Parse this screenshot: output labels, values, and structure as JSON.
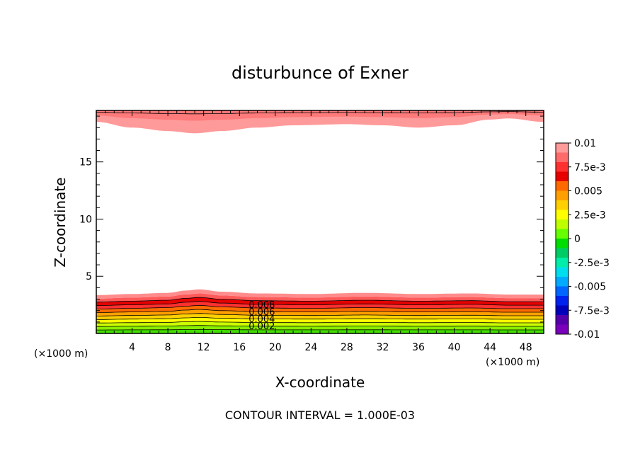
{
  "chart_data": {
    "type": "contour",
    "title": "disturbunce of Exner",
    "xlabel": "X-coordinate",
    "ylabel": "Z-coordinate",
    "x_unit_label": "(×1000 m)",
    "z_unit_label": "(×1000 m)",
    "footer": "CONTOUR INTERVAL = 1.000E-03",
    "xlim": [
      0,
      50
    ],
    "ylim": [
      0,
      19.5
    ],
    "x_ticks": [
      4,
      8,
      12,
      16,
      20,
      24,
      28,
      32,
      36,
      40,
      44,
      48
    ],
    "y_ticks": [
      5,
      10,
      15
    ],
    "contour_interval": 0.001,
    "contour_labels": [
      "0.008",
      "0.006",
      "0.004",
      "0.002"
    ],
    "contour_label_x": 18.5,
    "colorbar": {
      "labels": [
        "0.01",
        "7.5e-3",
        "0.005",
        "2.5e-3",
        "0",
        "-2.5e-3",
        "-0.005",
        "-7.5e-3",
        "-0.01"
      ],
      "colors": [
        "#ff9a9a",
        "#ff6a6a",
        "#ff3030",
        "#e60000",
        "#ff6a00",
        "#ffa000",
        "#ffd000",
        "#ffff00",
        "#c0ff00",
        "#66ff00",
        "#00dd00",
        "#00cc66",
        "#00eeaa",
        "#00ddee",
        "#00aaff",
        "#0066ff",
        "#0022ee",
        "#0000bb",
        "#5500aa",
        "#7a00bb"
      ]
    },
    "bottom_band_top": {
      "x": [
        0,
        4,
        8,
        10,
        11.5,
        14,
        18,
        24,
        30,
        36,
        42,
        46,
        50
      ],
      "z": [
        3.35,
        3.45,
        3.55,
        3.75,
        3.85,
        3.65,
        3.5,
        3.45,
        3.55,
        3.45,
        3.5,
        3.4,
        3.4
      ]
    },
    "top_band_bottom": {
      "x": [
        0,
        4,
        8,
        11,
        14,
        18,
        22,
        28,
        32,
        36,
        40,
        44,
        46,
        50
      ],
      "z": [
        18.5,
        18.0,
        17.7,
        17.5,
        17.7,
        18.0,
        18.2,
        18.3,
        18.2,
        18.0,
        18.2,
        18.7,
        18.8,
        18.5
      ]
    },
    "grid": false,
    "legend": "right"
  }
}
